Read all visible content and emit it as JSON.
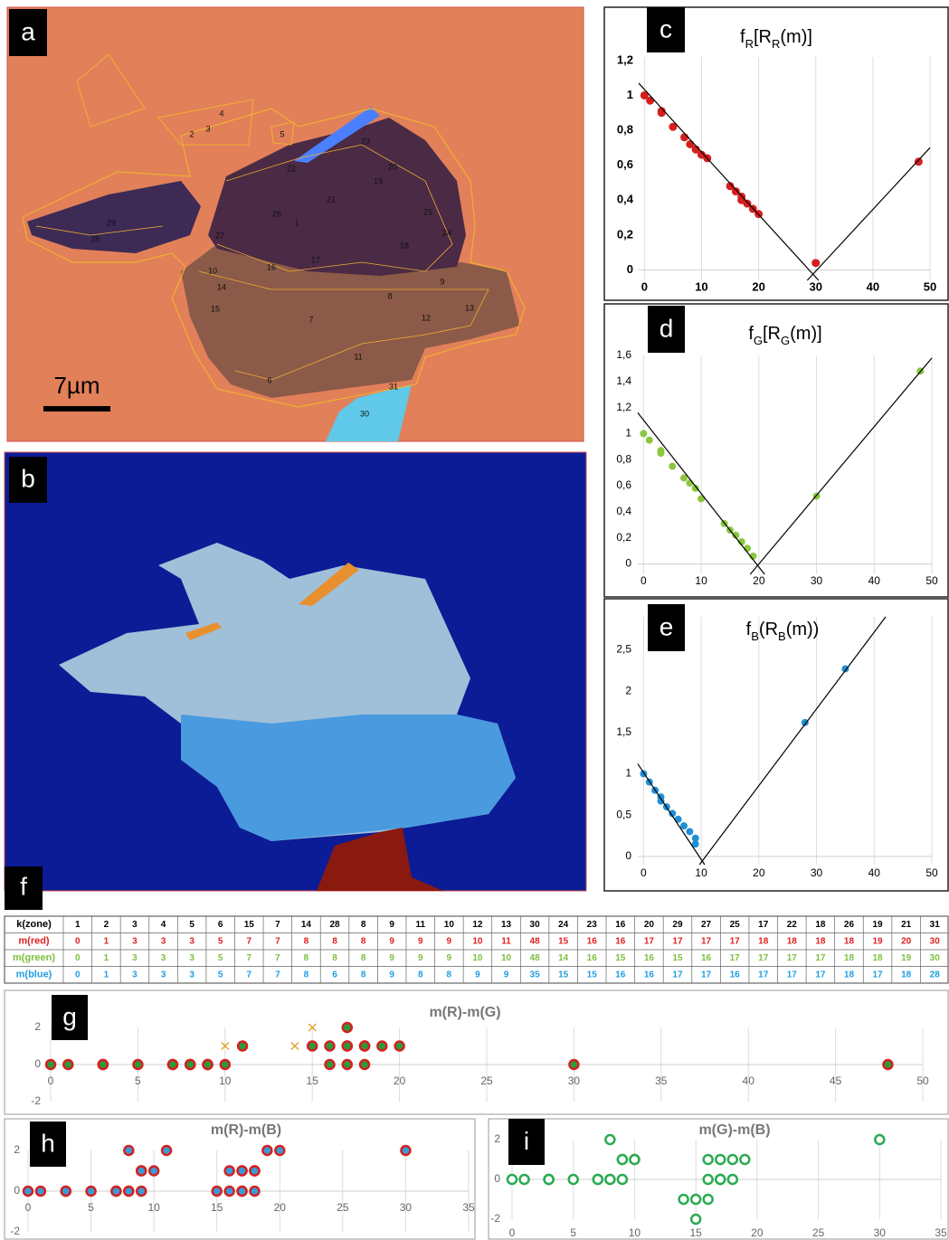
{
  "panels": {
    "a": "a",
    "b": "b",
    "f": "f"
  },
  "scale_bar": "7µm",
  "zone_labels": [
    "1",
    "2",
    "3",
    "4",
    "5",
    "6",
    "7",
    "8",
    "9",
    "10",
    "11",
    "12",
    "13",
    "14",
    "15",
    "16",
    "17",
    "18",
    "19",
    "20",
    "21",
    "22",
    "23",
    "24",
    "25",
    "26",
    "27",
    "28",
    "29",
    "30",
    "31"
  ],
  "table": {
    "header": [
      "k(zone)",
      1,
      2,
      3,
      4,
      5,
      6,
      15,
      7,
      14,
      28,
      8,
      9,
      11,
      10,
      12,
      13,
      30,
      24,
      23,
      16,
      20,
      29,
      27,
      25,
      17,
      22,
      18,
      26,
      19,
      21,
      31
    ],
    "rows": [
      [
        "m(red)",
        0,
        1,
        3,
        3,
        3,
        5,
        7,
        7,
        8,
        8,
        8,
        9,
        9,
        9,
        10,
        11,
        48,
        15,
        16,
        16,
        17,
        17,
        17,
        17,
        18,
        18,
        18,
        18,
        19,
        20,
        30
      ],
      [
        "m(green)",
        0,
        1,
        3,
        3,
        3,
        5,
        7,
        7,
        8,
        8,
        8,
        9,
        9,
        9,
        10,
        10,
        48,
        14,
        16,
        15,
        16,
        15,
        16,
        17,
        17,
        17,
        17,
        18,
        18,
        19,
        30
      ],
      [
        "m(blue)",
        0,
        1,
        3,
        3,
        3,
        5,
        7,
        7,
        8,
        6,
        8,
        9,
        8,
        8,
        9,
        9,
        35,
        15,
        15,
        16,
        16,
        17,
        17,
        16,
        17,
        17,
        17,
        18,
        17,
        18,
        28
      ]
    ],
    "row_colors": [
      "#e02020",
      "#7cc040",
      "#1e9ee0"
    ]
  },
  "chart_data": [
    {
      "type": "scatter",
      "label": "c",
      "title": [
        "f",
        "R",
        "[R",
        "R",
        "(m)]"
      ],
      "xlim": [
        -1,
        50
      ],
      "ylim": [
        -0.06,
        1.22
      ],
      "xticks": [
        0,
        10,
        20,
        30,
        40,
        50
      ],
      "yticks": [
        0,
        {
          "value": 0.2,
          "label": "0,2"
        },
        {
          "value": 0.4,
          "label": "0,4"
        },
        {
          "value": 0.6,
          "label": "0,6"
        },
        {
          "value": 0.8,
          "label": "0,8"
        },
        1,
        {
          "value": 1.2,
          "label": "1,2"
        }
      ],
      "grid": "x",
      "series": [
        {
          "marker": "dot",
          "color": "#d61e1e",
          "x": [
            0,
            1,
            3,
            3,
            5,
            7,
            8,
            9,
            10,
            11,
            15,
            16,
            17,
            17,
            18,
            19,
            20,
            30,
            48
          ],
          "y": [
            1,
            0.97,
            0.91,
            0.9,
            0.82,
            0.76,
            0.72,
            0.69,
            0.66,
            0.64,
            0.48,
            0.45,
            0.42,
            0.4,
            0.38,
            0.35,
            0.32,
            0.04,
            0.62
          ]
        },
        {
          "mode": "line",
          "color": "#000000",
          "x": [
            -1,
            30.5
          ],
          "y": [
            1.07,
            -0.06
          ]
        },
        {
          "mode": "line",
          "color": "#000000",
          "x": [
            28.5,
            50
          ],
          "y": [
            -0.06,
            0.7
          ]
        }
      ]
    },
    {
      "type": "scatter",
      "label": "d",
      "title": [
        "f",
        "G",
        "[R",
        "G",
        "(m)]"
      ],
      "xlim": [
        -1,
        50
      ],
      "ylim": [
        -0.08,
        1.6
      ],
      "xticks": [
        0,
        10,
        20,
        30,
        40,
        50
      ],
      "yticks": [
        0,
        {
          "value": 0.2,
          "label": "0,2"
        },
        {
          "value": 0.4,
          "label": "0,4"
        },
        {
          "value": 0.6,
          "label": "0,6"
        },
        {
          "value": 0.8,
          "label": "0,8"
        },
        1,
        {
          "value": 1.2,
          "label": "1,2"
        },
        {
          "value": 1.4,
          "label": "1,4"
        },
        {
          "value": 1.6,
          "label": "1,6"
        }
      ],
      "grid": "x",
      "series": [
        {
          "marker": "dot",
          "color": "#8cc63f",
          "x": [
            0,
            1,
            3,
            3,
            5,
            7,
            8,
            9,
            10,
            14,
            15,
            16,
            17,
            18,
            19,
            30,
            48
          ],
          "y": [
            1,
            0.95,
            0.87,
            0.85,
            0.75,
            0.66,
            0.62,
            0.58,
            0.5,
            0.31,
            0.26,
            0.22,
            0.17,
            0.12,
            0.06,
            0.52,
            1.48
          ]
        },
        {
          "mode": "line",
          "color": "#000000",
          "x": [
            -1,
            21
          ],
          "y": [
            1.16,
            -0.08
          ]
        },
        {
          "mode": "line",
          "color": "#000000",
          "x": [
            18.5,
            50
          ],
          "y": [
            -0.08,
            1.58
          ]
        }
      ]
    },
    {
      "type": "scatter",
      "label": "e",
      "title": [
        "f",
        "B",
        "(R",
        "B",
        "(m))"
      ],
      "xlim": [
        -1,
        50
      ],
      "ylim": [
        -0.1,
        2.9
      ],
      "xticks": [
        0,
        10,
        20,
        30,
        40,
        50
      ],
      "yticks": [
        0,
        {
          "value": 0.5,
          "label": "0,5"
        },
        1,
        {
          "value": 1.5,
          "label": "1,5"
        },
        2,
        {
          "value": 2.5,
          "label": "2,5"
        }
      ],
      "grid": "x",
      "series": [
        {
          "marker": "dot",
          "color": "#1e90d6",
          "x": [
            0,
            1,
            2,
            3,
            3,
            4,
            5,
            6,
            7,
            8,
            9,
            9,
            28,
            35
          ],
          "y": [
            1,
            0.9,
            0.8,
            0.72,
            0.67,
            0.6,
            0.52,
            0.45,
            0.37,
            0.3,
            0.22,
            0.15,
            1.62,
            2.27
          ]
        },
        {
          "mode": "line",
          "color": "#000000",
          "x": [
            -1,
            10.6
          ],
          "y": [
            1.12,
            -0.1
          ]
        },
        {
          "mode": "line",
          "color": "#000000",
          "x": [
            9.7,
            42
          ],
          "y": [
            -0.1,
            2.9
          ]
        }
      ]
    },
    {
      "type": "scatter",
      "label": "g",
      "title": "m(R)-m(G)",
      "xlim": [
        0,
        50
      ],
      "ylim": [
        -2,
        2
      ],
      "xticks": [
        0,
        5,
        10,
        15,
        20,
        25,
        30,
        35,
        40,
        45,
        50
      ],
      "yticks": [
        -2,
        0,
        2
      ],
      "grid": "x",
      "series": [
        {
          "marker": "ring",
          "color": "#2a9a3a",
          "edgecolor": "#d42020",
          "x": [
            0,
            1,
            3,
            3,
            3,
            5,
            7,
            7,
            8,
            8,
            8,
            9,
            9,
            9,
            10,
            11,
            48,
            15,
            16,
            16,
            17,
            17,
            17,
            17,
            18,
            18,
            18,
            18,
            19,
            20,
            30
          ],
          "y": [
            0,
            0,
            0,
            0,
            0,
            0,
            0,
            0,
            0,
            0,
            0,
            0,
            0,
            0,
            0,
            1,
            0,
            1,
            0,
            1,
            1,
            2,
            1,
            0,
            1,
            1,
            1,
            0,
            1,
            1,
            0
          ]
        },
        {
          "marker": "cross",
          "color": "#e0a020",
          "x": [
            10,
            14,
            15
          ],
          "y": [
            1,
            1,
            2
          ]
        }
      ]
    },
    {
      "type": "scatter",
      "label": "h",
      "title": "m(R)-m(B)",
      "xlim": [
        0,
        35
      ],
      "ylim": [
        -2,
        2
      ],
      "xticks": [
        0,
        5,
        10,
        15,
        20,
        25,
        30,
        35
      ],
      "yticks": [
        -2,
        0,
        2
      ],
      "grid": "x",
      "series": [
        {
          "marker": "ring",
          "color": "#3a9ad8",
          "edgecolor": "#d42020",
          "x": [
            0,
            1,
            3,
            3,
            3,
            5,
            7,
            7,
            8,
            8,
            8,
            9,
            9,
            9,
            10,
            11,
            15,
            16,
            16,
            17,
            17,
            17,
            17,
            18,
            18,
            18,
            18,
            19,
            20,
            30
          ],
          "y": [
            0,
            0,
            0,
            0,
            0,
            0,
            0,
            0,
            0,
            2,
            0,
            0,
            1,
            1,
            1,
            2,
            0,
            1,
            0,
            1,
            0,
            0,
            1,
            1,
            1,
            1,
            0,
            2,
            2,
            2
          ]
        }
      ]
    },
    {
      "type": "scatter",
      "label": "i",
      "title": "m(G)-m(B)",
      "xlim": [
        0,
        35
      ],
      "ylim": [
        -2,
        2
      ],
      "xticks": [
        0,
        5,
        10,
        15,
        20,
        25,
        30,
        35
      ],
      "yticks": [
        -2,
        0,
        2
      ],
      "grid": "x",
      "series": [
        {
          "marker": "ring",
          "color": "#ffffff",
          "edgecolor": "#2aaa50",
          "x": [
            0,
            1,
            3,
            3,
            3,
            5,
            7,
            7,
            8,
            8,
            8,
            9,
            9,
            9,
            10,
            10,
            14,
            16,
            15,
            16,
            15,
            16,
            17,
            17,
            17,
            17,
            18,
            18,
            19,
            30
          ],
          "y": [
            0,
            0,
            0,
            0,
            0,
            0,
            0,
            0,
            0,
            2,
            0,
            0,
            1,
            1,
            1,
            1,
            -1,
            1,
            -1,
            0,
            -2,
            -1,
            1,
            0,
            0,
            0,
            0,
            1,
            1,
            2
          ]
        }
      ]
    }
  ]
}
